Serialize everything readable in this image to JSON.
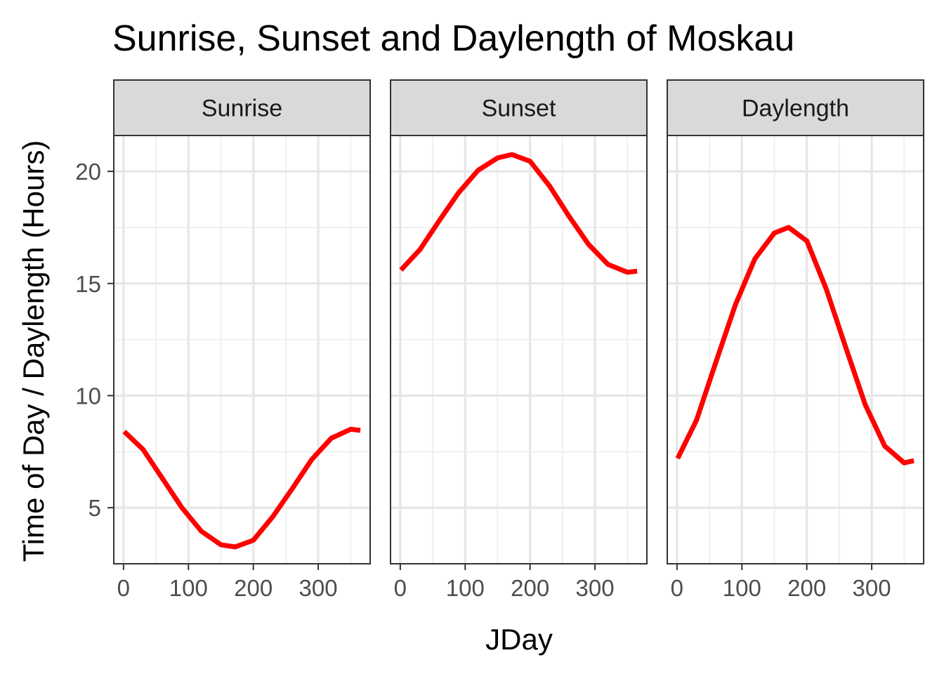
{
  "chart_data": {
    "type": "line",
    "title": "Sunrise, Sunset and Daylength of Moskau",
    "xlabel": "JDay",
    "ylabel": "Time of Day / Daylength (Hours)",
    "xlim": [
      -15,
      380
    ],
    "ylim": [
      2.5,
      21.6
    ],
    "x_ticks": [
      0,
      100,
      200,
      300
    ],
    "y_ticks": [
      5,
      10,
      15,
      20
    ],
    "grid": true,
    "line_color": "#FF0000",
    "panels": [
      {
        "name": "Sunrise",
        "x": [
          1,
          30,
          60,
          90,
          120,
          150,
          172,
          200,
          230,
          260,
          290,
          320,
          350,
          365
        ],
        "y": [
          8.4,
          7.6,
          6.3,
          5.0,
          3.95,
          3.35,
          3.25,
          3.55,
          4.6,
          5.85,
          7.15,
          8.1,
          8.5,
          8.45
        ]
      },
      {
        "name": "Sunset",
        "x": [
          1,
          30,
          60,
          90,
          120,
          150,
          172,
          200,
          230,
          260,
          290,
          320,
          350,
          365
        ],
        "y": [
          15.6,
          16.5,
          17.8,
          19.05,
          20.05,
          20.6,
          20.75,
          20.45,
          19.35,
          18.0,
          16.75,
          15.85,
          15.5,
          15.55
        ]
      },
      {
        "name": "Daylength",
        "x": [
          1,
          30,
          60,
          90,
          120,
          150,
          172,
          200,
          230,
          260,
          290,
          320,
          350,
          365
        ],
        "y": [
          7.2,
          8.9,
          11.5,
          14.05,
          16.1,
          17.25,
          17.5,
          16.9,
          14.75,
          12.15,
          9.6,
          7.75,
          7.0,
          7.1
        ]
      }
    ]
  }
}
